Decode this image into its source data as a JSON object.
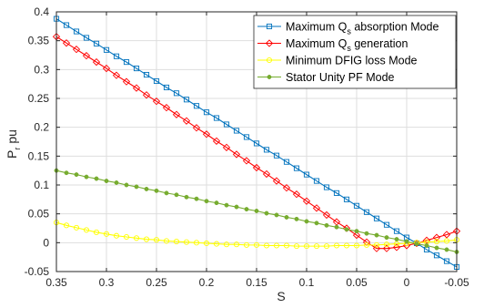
{
  "chart_data": {
    "type": "line",
    "xlabel": "S",
    "ylabel": "P",
    "ylabel_sub": "r",
    "ylabel_unit": "pu",
    "xlim": [
      0.35,
      -0.05
    ],
    "ylim": [
      -0.05,
      0.4
    ],
    "x_reversed": true,
    "grid": true,
    "legend_position": "top-right",
    "xticks": [
      0.35,
      0.3,
      0.25,
      0.2,
      0.15,
      0.1,
      0.05,
      0,
      -0.05
    ],
    "xtick_labels": [
      "0.35",
      "0.3",
      "0.25",
      "0.2",
      "0.15",
      "0.1",
      "0.05",
      "0",
      "-0.05"
    ],
    "yticks": [
      -0.05,
      0,
      0.05,
      0.1,
      0.15,
      0.2,
      0.25,
      0.3,
      0.35,
      0.4
    ],
    "ytick_labels": [
      "-0.05",
      "0",
      "0.05",
      "0.1",
      "0.15",
      "0.2",
      "0.25",
      "0.3",
      "0.35",
      "0.4"
    ],
    "x": [
      0.35,
      0.34,
      0.33,
      0.32,
      0.31,
      0.3,
      0.29,
      0.28,
      0.27,
      0.26,
      0.25,
      0.24,
      0.23,
      0.22,
      0.21,
      0.2,
      0.19,
      0.18,
      0.17,
      0.16,
      0.15,
      0.14,
      0.13,
      0.12,
      0.11,
      0.1,
      0.09,
      0.08,
      0.07,
      0.06,
      0.05,
      0.04,
      0.03,
      0.02,
      0.01,
      0.0,
      -0.01,
      -0.02,
      -0.03,
      -0.04,
      -0.05
    ],
    "series": [
      {
        "name": "Maximum Q",
        "name_sub": "s",
        "name_rest": " absorption Mode",
        "color": "#0072bd",
        "marker": "square",
        "values": [
          0.388,
          0.377,
          0.366,
          0.355,
          0.345,
          0.334,
          0.323,
          0.313,
          0.302,
          0.291,
          0.28,
          0.269,
          0.259,
          0.248,
          0.237,
          0.226,
          0.216,
          0.205,
          0.194,
          0.183,
          0.172,
          0.161,
          0.151,
          0.14,
          0.129,
          0.118,
          0.107,
          0.096,
          0.086,
          0.075,
          0.064,
          0.053,
          0.042,
          0.031,
          0.02,
          0.009,
          -0.001,
          -0.012,
          -0.022,
          -0.032,
          -0.042
        ]
      },
      {
        "name": "Maximum Q",
        "name_sub": "s",
        "name_rest": " generation",
        "color": "#ff0000",
        "marker": "diamond",
        "values": [
          0.357,
          0.346,
          0.335,
          0.324,
          0.313,
          0.302,
          0.29,
          0.279,
          0.268,
          0.256,
          0.245,
          0.234,
          0.222,
          0.211,
          0.199,
          0.188,
          0.176,
          0.165,
          0.153,
          0.142,
          0.13,
          0.119,
          0.107,
          0.095,
          0.084,
          0.072,
          0.06,
          0.048,
          0.036,
          0.025,
          0.013,
          0.001,
          -0.01,
          -0.01,
          -0.008,
          -0.005,
          -0.001,
          0.004,
          0.009,
          0.014,
          0.02
        ]
      },
      {
        "name": "Minimum DFIG loss Mode",
        "color": "#ffff00",
        "marker": "circle",
        "values": [
          0.035,
          0.03,
          0.026,
          0.022,
          0.018,
          0.015,
          0.012,
          0.01,
          0.008,
          0.006,
          0.005,
          0.003,
          0.002,
          0.001,
          0.0,
          -0.001,
          -0.002,
          -0.003,
          -0.003,
          -0.004,
          -0.004,
          -0.005,
          -0.005,
          -0.005,
          -0.006,
          -0.006,
          -0.006,
          -0.006,
          -0.005,
          -0.005,
          -0.005,
          -0.004,
          -0.004,
          -0.003,
          -0.002,
          -0.001,
          0.0,
          0.001,
          0.002,
          0.003,
          0.005
        ]
      },
      {
        "name": "Stator Unity PF Mode",
        "color": "#77ac30",
        "marker": "dot",
        "values": [
          0.125,
          0.121,
          0.118,
          0.114,
          0.111,
          0.107,
          0.104,
          0.1,
          0.097,
          0.093,
          0.09,
          0.086,
          0.083,
          0.079,
          0.076,
          0.072,
          0.069,
          0.065,
          0.062,
          0.058,
          0.055,
          0.051,
          0.048,
          0.044,
          0.041,
          0.037,
          0.034,
          0.03,
          0.027,
          0.023,
          0.02,
          0.016,
          0.013,
          0.009,
          0.006,
          0.002,
          -0.002,
          -0.005,
          -0.009,
          -0.012,
          -0.016
        ]
      }
    ]
  }
}
